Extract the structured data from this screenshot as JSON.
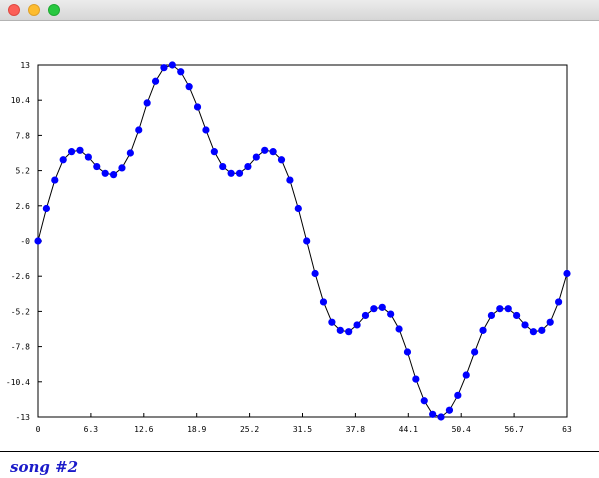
{
  "window": {
    "controls": {
      "close": "#fc5f57",
      "minimize": "#fdbc2e",
      "zoom": "#28c840"
    }
  },
  "caption": "song #2",
  "chart_data": {
    "type": "line",
    "title": "",
    "xlabel": "",
    "ylabel": "",
    "xlim": [
      0,
      63
    ],
    "ylim": [
      -13,
      13
    ],
    "grid": false,
    "x_ticks": [
      "0",
      "6.3",
      "12.6",
      "18.9",
      "25.2",
      "31.5",
      "37.8",
      "44.1",
      "50.4",
      "56.7",
      "63"
    ],
    "y_ticks": [
      "13",
      "10.4",
      "7.8",
      "5.2",
      "2.6",
      "-0",
      "-2.6",
      "-5.2",
      "-7.8",
      "-10.4",
      "-13"
    ],
    "line_color": "#000000",
    "marker_color": "#0000ff",
    "series": [
      {
        "x": [
          0,
          1,
          2,
          3,
          4,
          5,
          6,
          7,
          8,
          9,
          10,
          11,
          12,
          13,
          14,
          15,
          16,
          17,
          18,
          19,
          20,
          21,
          22,
          23,
          24,
          25,
          26,
          27,
          28,
          29,
          30,
          31,
          32,
          33,
          34,
          35,
          36,
          37,
          38,
          39,
          40,
          41,
          42,
          43,
          44,
          45,
          46,
          47,
          48,
          49,
          50,
          51,
          52,
          53,
          54,
          55,
          56,
          57,
          58,
          59,
          60,
          61,
          62,
          63
        ],
        "y": [
          0,
          2.4,
          4.5,
          6,
          6.6,
          6.7,
          6.2,
          5.5,
          5,
          4.9,
          5.4,
          6.5,
          8.2,
          10.2,
          11.8,
          12.8,
          13,
          12.5,
          11.4,
          9.9,
          8.2,
          6.6,
          5.5,
          5,
          5,
          5.5,
          6.2,
          6.7,
          6.6,
          6,
          4.5,
          2.4,
          0,
          -2.4,
          -4.5,
          -6,
          -6.6,
          -6.7,
          -6.2,
          -5.5,
          -5,
          -4.9,
          -5.4,
          -6.5,
          -8.2,
          -10.2,
          -11.8,
          -12.8,
          -13,
          -12.5,
          -11.4,
          -9.9,
          -8.2,
          -6.6,
          -5.5,
          -5,
          -5,
          -5.5,
          -6.2,
          -6.7,
          -6.6,
          -6,
          -4.5,
          -2.4
        ]
      }
    ]
  }
}
